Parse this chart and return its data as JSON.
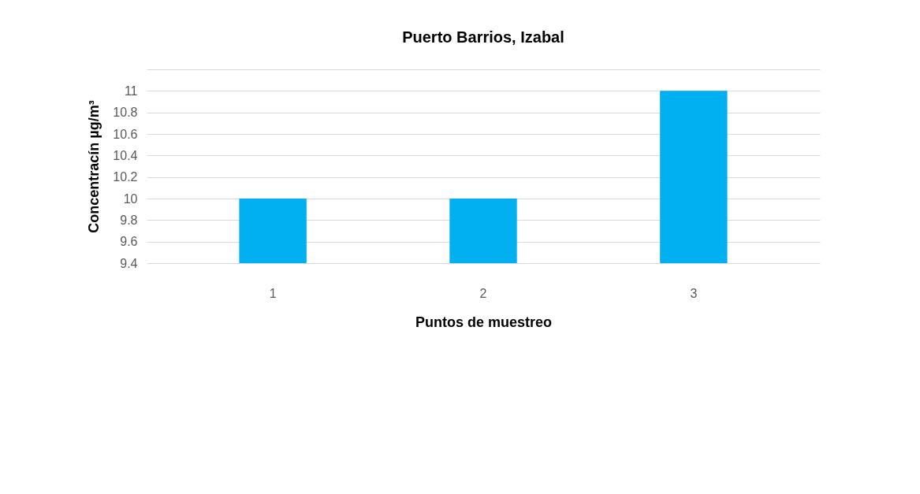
{
  "chart_data": {
    "type": "bar",
    "title": "Puerto Barrios, Izabal",
    "xlabel": "Puntos de muestreo",
    "ylabel": "Concentracín µg/m³",
    "categories": [
      "1",
      "2",
      "3"
    ],
    "values": [
      10,
      10,
      11
    ],
    "color": "#00b0f0",
    "ylim": [
      9.4,
      11.2
    ],
    "yticks": [
      9.4,
      9.6,
      9.8,
      10,
      10.2,
      10.4,
      10.6,
      10.8,
      11,
      {
        "value": 11.2,
        "label": null
      }
    ],
    "grid": "y"
  }
}
